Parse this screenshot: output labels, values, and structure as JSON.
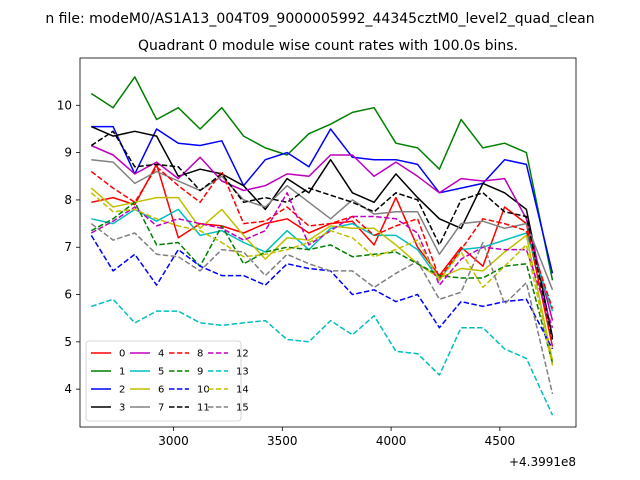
{
  "figure": {
    "suptitle": "n file: modeM0/AS1A13_004T09_9000005992_44345cztM0_level2_quad_clean",
    "title": "Quadrant 0 module wise count rates with 100.0s bins.",
    "offset_label": "+4.3991e8"
  },
  "chart_data": {
    "type": "line",
    "title": "Quadrant 0 module wise count rates with 100.0s bins.",
    "xlabel": "",
    "ylabel": "",
    "x_offset": 439910000,
    "xlim": [
      2570,
      4850
    ],
    "ylim": [
      3.2,
      11.0
    ],
    "xticks": [
      3000,
      3500,
      4000,
      4500
    ],
    "xtick_labels": [
      "3000",
      "3500",
      "4000",
      "4500"
    ],
    "yticks": [
      4,
      5,
      6,
      7,
      8,
      9,
      10
    ],
    "ytick_labels": [
      "4",
      "5",
      "6",
      "7",
      "8",
      "9",
      "10"
    ],
    "grid": false,
    "legend_position": "lower-left",
    "legend_columns": 4,
    "x": [
      2622,
      2722,
      2822,
      2922,
      3022,
      3122,
      3222,
      3322,
      3422,
      3522,
      3622,
      3722,
      3822,
      3922,
      4022,
      4122,
      4222,
      4322,
      4422,
      4522,
      4622,
      4742
    ],
    "series": [
      {
        "name": "0",
        "color": "#ff0000",
        "dash": "solid",
        "values": [
          7.95,
          8.05,
          7.9,
          8.75,
          7.2,
          7.5,
          7.45,
          7.3,
          7.5,
          7.6,
          7.3,
          7.5,
          7.55,
          7.05,
          8.05,
          7.0,
          6.4,
          7.0,
          6.6,
          7.85,
          7.5,
          4.9
        ]
      },
      {
        "name": "1",
        "color": "#008000",
        "dash": "solid",
        "values": [
          10.25,
          9.95,
          10.6,
          9.7,
          9.95,
          9.5,
          9.95,
          9.35,
          9.1,
          8.95,
          9.4,
          9.6,
          9.85,
          9.95,
          9.2,
          9.1,
          8.65,
          9.7,
          9.1,
          9.2,
          9.0,
          6.3
        ]
      },
      {
        "name": "2",
        "color": "#0000ff",
        "dash": "solid",
        "values": [
          9.55,
          9.55,
          8.55,
          9.5,
          9.2,
          9.15,
          9.25,
          8.3,
          8.85,
          9.0,
          8.7,
          9.5,
          8.9,
          8.85,
          8.85,
          8.75,
          8.15,
          8.25,
          8.35,
          8.85,
          8.75,
          6.45
        ]
      },
      {
        "name": "3",
        "color": "#000000",
        "dash": "solid",
        "values": [
          9.55,
          9.35,
          9.45,
          9.35,
          8.5,
          8.65,
          8.55,
          8.3,
          7.8,
          8.45,
          8.15,
          8.85,
          8.15,
          7.95,
          8.55,
          8.05,
          7.6,
          7.4,
          8.35,
          8.15,
          7.8,
          5.1
        ]
      },
      {
        "name": "4",
        "color": "#bf00bf",
        "dash": "solid",
        "values": [
          9.15,
          8.95,
          8.55,
          8.8,
          8.45,
          8.9,
          8.4,
          8.2,
          8.3,
          8.55,
          8.5,
          8.95,
          8.95,
          8.5,
          8.8,
          8.5,
          8.15,
          8.45,
          8.4,
          8.45,
          7.6,
          5.45
        ]
      },
      {
        "name": "5",
        "color": "#00bfbf",
        "dash": "solid",
        "values": [
          7.6,
          7.5,
          7.8,
          7.55,
          7.8,
          7.25,
          7.35,
          7.1,
          6.9,
          7.35,
          6.95,
          7.4,
          7.5,
          7.25,
          7.25,
          6.95,
          6.3,
          6.95,
          7.0,
          7.15,
          7.3,
          5.65
        ]
      },
      {
        "name": "6",
        "color": "#bfbf00",
        "dash": "solid",
        "values": [
          8.25,
          7.85,
          7.95,
          8.05,
          8.05,
          7.4,
          7.8,
          7.25,
          6.75,
          7.2,
          7.15,
          7.45,
          7.4,
          7.4,
          7.05,
          6.65,
          6.35,
          6.55,
          6.5,
          6.9,
          7.25,
          4.6
        ]
      },
      {
        "name": "7",
        "color": "#808080",
        "dash": "solid",
        "values": [
          8.85,
          8.8,
          8.35,
          8.6,
          8.4,
          8.2,
          8.5,
          8.0,
          7.85,
          8.3,
          7.95,
          7.6,
          8.0,
          7.7,
          7.75,
          7.75,
          6.85,
          7.5,
          7.55,
          7.4,
          7.5,
          6.1
        ]
      },
      {
        "name": "8",
        "color": "#ff0000",
        "dash": "dashed",
        "values": [
          8.6,
          8.25,
          7.95,
          8.7,
          8.3,
          7.95,
          8.6,
          7.5,
          7.55,
          7.85,
          7.45,
          7.5,
          7.65,
          7.25,
          7.45,
          7.6,
          6.35,
          6.95,
          7.6,
          7.5,
          7.35,
          5.7
        ]
      },
      {
        "name": "9",
        "color": "#008000",
        "dash": "dashed",
        "values": [
          7.35,
          7.6,
          7.95,
          7.05,
          7.1,
          6.6,
          7.45,
          6.65,
          6.9,
          7.0,
          6.95,
          7.05,
          6.8,
          6.85,
          6.9,
          6.65,
          6.4,
          6.35,
          6.35,
          6.6,
          6.65,
          4.55
        ]
      },
      {
        "name": "10",
        "color": "#0000ff",
        "dash": "dashed",
        "values": [
          7.25,
          6.5,
          6.85,
          6.2,
          6.95,
          6.6,
          6.4,
          6.4,
          6.2,
          6.65,
          6.55,
          6.5,
          6.0,
          6.1,
          5.85,
          6.0,
          5.3,
          5.85,
          5.75,
          5.85,
          5.9,
          4.85
        ]
      },
      {
        "name": "11",
        "color": "#000000",
        "dash": "dashed",
        "values": [
          9.15,
          9.45,
          8.7,
          8.75,
          8.7,
          8.2,
          8.55,
          7.95,
          8.05,
          7.95,
          8.25,
          8.1,
          7.95,
          7.75,
          8.15,
          8.0,
          7.05,
          8.0,
          8.15,
          7.75,
          7.65,
          5.05
        ]
      },
      {
        "name": "12",
        "color": "#bf00bf",
        "dash": "dashed",
        "values": [
          7.3,
          7.55,
          7.85,
          7.45,
          7.6,
          7.5,
          7.4,
          7.15,
          7.35,
          8.15,
          7.05,
          7.35,
          7.65,
          7.65,
          7.6,
          7.3,
          6.2,
          6.75,
          7.0,
          6.95,
          6.95,
          5.3
        ]
      },
      {
        "name": "13",
        "color": "#00bfbf",
        "dash": "dashed",
        "values": [
          5.75,
          5.9,
          5.4,
          5.65,
          5.65,
          5.4,
          5.35,
          5.4,
          5.45,
          5.05,
          5.0,
          5.45,
          5.15,
          5.55,
          4.8,
          4.75,
          4.3,
          5.3,
          5.3,
          4.85,
          4.65,
          3.45
        ]
      },
      {
        "name": "14",
        "color": "#bfbf00",
        "dash": "dashed",
        "values": [
          8.15,
          7.75,
          7.8,
          7.6,
          7.45,
          7.35,
          7.1,
          6.8,
          6.85,
          6.95,
          7.1,
          7.35,
          7.2,
          6.8,
          6.95,
          7.15,
          6.3,
          6.9,
          6.15,
          6.6,
          7.05,
          4.5
        ]
      },
      {
        "name": "15",
        "color": "#808080",
        "dash": "dashed",
        "values": [
          7.5,
          7.15,
          7.3,
          6.85,
          6.8,
          6.5,
          6.95,
          6.9,
          6.4,
          6.85,
          6.65,
          6.5,
          6.5,
          6.15,
          6.45,
          6.7,
          5.9,
          6.05,
          7.1,
          5.8,
          6.25,
          3.9
        ]
      }
    ]
  }
}
